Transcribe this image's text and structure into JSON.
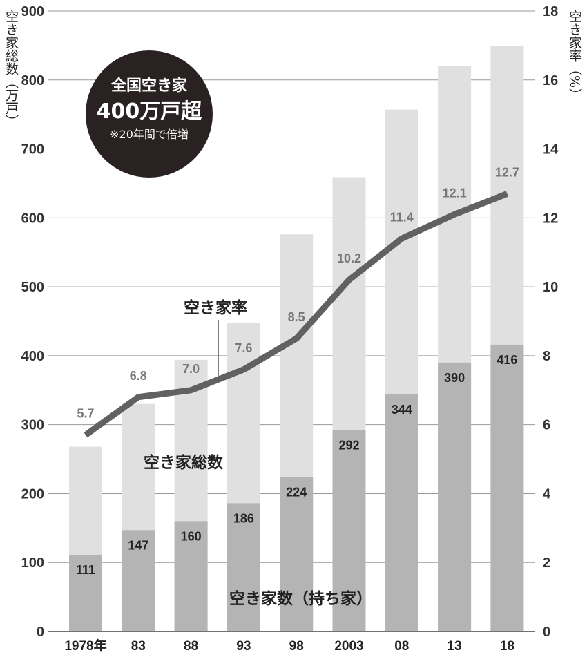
{
  "chart_data": {
    "type": "bar",
    "categories": [
      "1978年",
      "83",
      "88",
      "93",
      "98",
      "2003",
      "08",
      "13",
      "18"
    ],
    "series": [
      {
        "name": "空き家総数",
        "values": [
          268,
          330,
          394,
          448,
          576,
          659,
          757,
          820,
          849
        ]
      },
      {
        "name": "空き家数（持ち家）",
        "values": [
          111,
          147,
          160,
          186,
          224,
          292,
          344,
          390,
          416
        ]
      },
      {
        "name": "空き家率",
        "values": [
          5.7,
          6.8,
          7.0,
          7.6,
          8.5,
          10.2,
          11.4,
          12.1,
          12.7
        ]
      }
    ],
    "ylabel_left": "空き家総数（万戸）",
    "ylabel_right": "空き家率（%）",
    "ylim_left": [
      0,
      900
    ],
    "ylim_right": [
      0,
      18
    ],
    "yticks_left": [
      "0",
      "100",
      "200",
      "300",
      "400",
      "500",
      "600",
      "700",
      "800",
      "900"
    ],
    "yticks_right": [
      "0",
      "2",
      "4",
      "6",
      "8",
      "10",
      "12",
      "14",
      "16",
      "18"
    ],
    "grid": true,
    "legend": "none"
  },
  "annotations": {
    "rate_label": "空き家率",
    "total_label": "空き家総数",
    "owned_label": "空き家数（持ち家）"
  },
  "badge": {
    "line1": "全国空き家",
    "line2": "400万戸超",
    "line3": "※20年間で倍増"
  },
  "colors": {
    "total_bar": "#e0e0e0",
    "owned_bar": "#b4b4b4",
    "rate_line": "#616161",
    "badge_bg": "#2a2222"
  }
}
